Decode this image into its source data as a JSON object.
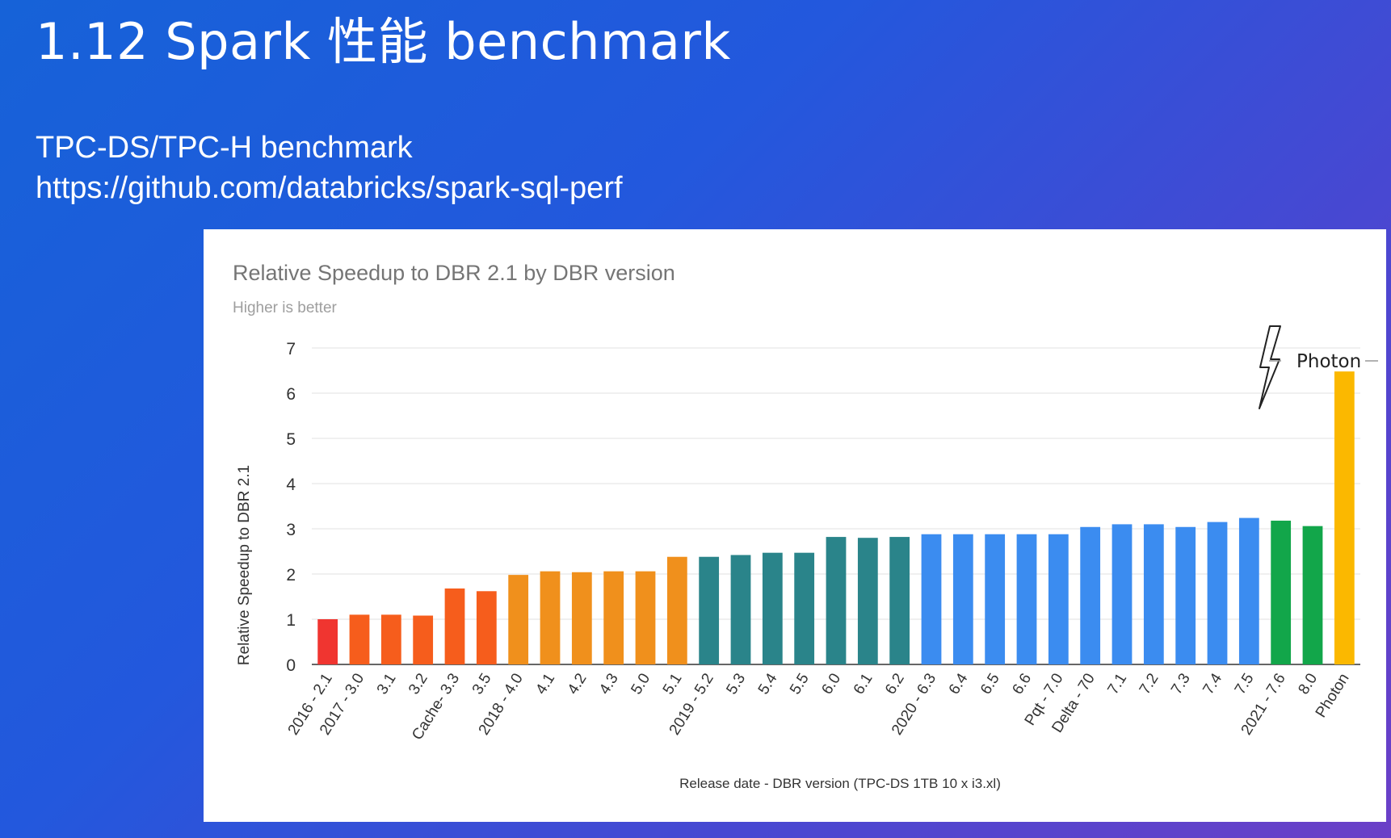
{
  "slide": {
    "title": "1.12 Spark 性能 benchmark",
    "subtitle_line1": "TPC-DS/TPC-H benchmark",
    "subtitle_line2": "https://github.com/databricks/spark-sql-perf"
  },
  "chart_data": {
    "type": "bar",
    "title": "Relative Speedup to DBR 2.1 by DBR version",
    "subtitle": "Higher is better",
    "xlabel": "Release date - DBR version (TPC-DS 1TB 10 x i3.xl)",
    "ylabel": "Relative Speedup to DBR 2.1",
    "ylim": [
      0,
      7
    ],
    "yticks": [
      0,
      1,
      2,
      3,
      4,
      5,
      6,
      7
    ],
    "grid": true,
    "categories": [
      "2016 - 2.1",
      "2017 - 3.0",
      "3.1",
      "3.2",
      "Cache- 3.3",
      "3.5",
      "2018 - 4.0",
      "4.1",
      "4.2",
      "4.3",
      "5.0",
      "5.1",
      "2019 - 5.2",
      "5.3",
      "5.4",
      "5.5",
      "6.0",
      "6.1",
      "6.2",
      "2020 - 6.3",
      "6.4",
      "6.5",
      "6.6",
      "Pqt - 7.0",
      "Delta - 70",
      "7.1",
      "7.2",
      "7.3",
      "7.4",
      "7.5",
      "2021 - 7.6",
      "8.0",
      "Photon"
    ],
    "values": [
      1.0,
      1.1,
      1.1,
      1.08,
      1.68,
      1.62,
      1.98,
      2.06,
      2.04,
      2.06,
      2.06,
      2.38,
      2.38,
      2.42,
      2.47,
      2.47,
      2.82,
      2.8,
      2.82,
      2.88,
      2.88,
      2.88,
      2.88,
      2.88,
      3.04,
      3.1,
      3.1,
      3.04,
      3.15,
      3.24,
      3.18,
      3.06,
      6.48
    ],
    "bar_colors": [
      "#f03530",
      "#f65d1c",
      "#f65d1c",
      "#f65d1c",
      "#f65d1c",
      "#f65d1c",
      "#f0901c",
      "#f0901c",
      "#f0901c",
      "#f0901c",
      "#f0901c",
      "#f0901c",
      "#2a848a",
      "#2a848a",
      "#2a848a",
      "#2a848a",
      "#2a848a",
      "#2a848a",
      "#2a848a",
      "#3b8cf0",
      "#3b8cf0",
      "#3b8cf0",
      "#3b8cf0",
      "#3b8cf0",
      "#3b8cf0",
      "#3b8cf0",
      "#3b8cf0",
      "#3b8cf0",
      "#3b8cf0",
      "#3b8cf0",
      "#12a64a",
      "#12a64a",
      "#fbb800"
    ],
    "annotation": {
      "label": "Photon",
      "icon": "lightning-bolt-icon",
      "target": "Photon"
    }
  }
}
